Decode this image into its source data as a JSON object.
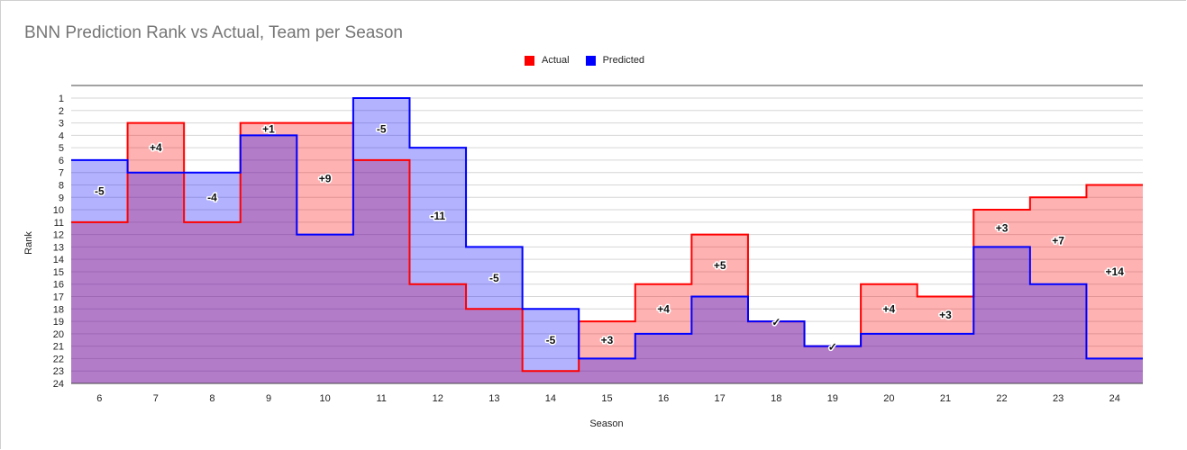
{
  "chart_data": {
    "type": "step-area",
    "title": "BNN Prediction Rank vs Actual, Team per Season",
    "xlabel": "Season",
    "ylabel": "Rank",
    "categories": [
      "6",
      "7",
      "8",
      "9",
      "10",
      "11",
      "12",
      "13",
      "14",
      "15",
      "16",
      "17",
      "18",
      "19",
      "20",
      "21",
      "22",
      "23",
      "24"
    ],
    "y_ticks": [
      "1",
      "2",
      "3",
      "4",
      "5",
      "6",
      "7",
      "8",
      "9",
      "10",
      "11",
      "12",
      "13",
      "14",
      "15",
      "16",
      "17",
      "18",
      "19",
      "20",
      "21",
      "22",
      "23",
      "24"
    ],
    "ylim": [
      1,
      24
    ],
    "y_inverted": true,
    "legend_position": "top",
    "series": [
      {
        "name": "Actual",
        "color": "#ff0000",
        "fill": "#ff0000",
        "values": [
          11,
          3,
          11,
          3,
          3,
          6,
          16,
          18,
          23,
          19,
          16,
          12,
          19,
          21,
          16,
          17,
          10,
          9,
          8
        ]
      },
      {
        "name": "Predicted",
        "color": "#0000ff",
        "fill": "#0000ff",
        "values": [
          6,
          7,
          7,
          4,
          12,
          1,
          5,
          13,
          18,
          22,
          20,
          17,
          19,
          21,
          20,
          20,
          13,
          16,
          22
        ]
      }
    ],
    "labels": [
      "-5",
      "+4",
      "-4",
      "+1",
      "+9",
      "-5",
      "-11",
      "-5",
      "-5",
      "+3",
      "+4",
      "+5",
      "✓",
      "✓",
      "+4",
      "+3",
      "+3",
      "+7",
      "+14"
    ]
  }
}
